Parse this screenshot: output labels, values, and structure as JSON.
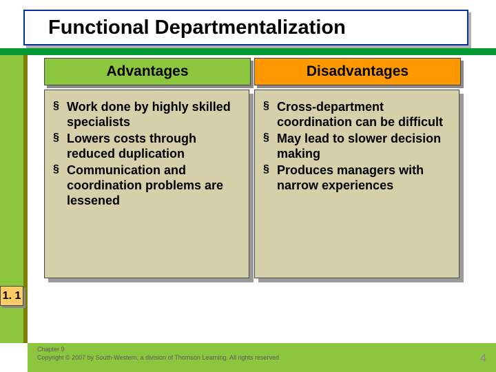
{
  "colors": {
    "title_border": "#003399",
    "accent_bar": "#009933",
    "left_band": "#8CC63F",
    "olive": "#808000",
    "header_left_bg": "#8CC63F",
    "header_right_bg": "#FF9900",
    "content_bg": "#D6D0AA",
    "side_label_bg": "#FFCC66",
    "bottom_bar": "#8CC63F",
    "slide_bg": "#FFFFFF"
  },
  "title": "Functional Departmentalization",
  "headers": {
    "left": "Advantages",
    "right": "Disadvantages"
  },
  "advantages": [
    "Work done by highly skilled specialists",
    "Lowers costs through reduced duplication",
    "Communication and coordination problems are lessened"
  ],
  "disadvantages": [
    "Cross-department coordination can be difficult",
    "May lead to slower decision making",
    "Produces managers with narrow experiences"
  ],
  "side_label": "1. 1",
  "footer_line1": "Chapter 9",
  "footer_line2": "Copyright © 2007 by South-Western, a division of Thomson Learning.  All rights reserved",
  "page_number": "4"
}
